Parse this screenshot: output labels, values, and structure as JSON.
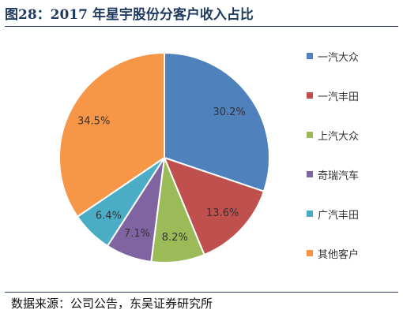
{
  "title": "图28：2017 年星宇股份分客户收入占比",
  "source": "数据来源：公司公告，东吴证券研究所",
  "chart_data": {
    "type": "pie",
    "categories": [
      "一汽大众",
      "一汽丰田",
      "上汽大众",
      "奇瑞汽车",
      "广汽丰田",
      "其他客户"
    ],
    "values": [
      30.2,
      13.6,
      8.2,
      7.1,
      6.4,
      34.5
    ],
    "labels": [
      "30.2%",
      "13.6%",
      "8.2%",
      "7.1%",
      "6.4%",
      "34.5%"
    ],
    "colors": [
      "#4f81bd",
      "#c0504d",
      "#9bbb59",
      "#8064a2",
      "#4bacc6",
      "#f79646"
    ],
    "legend_position": "right",
    "label_color": "#333333"
  }
}
